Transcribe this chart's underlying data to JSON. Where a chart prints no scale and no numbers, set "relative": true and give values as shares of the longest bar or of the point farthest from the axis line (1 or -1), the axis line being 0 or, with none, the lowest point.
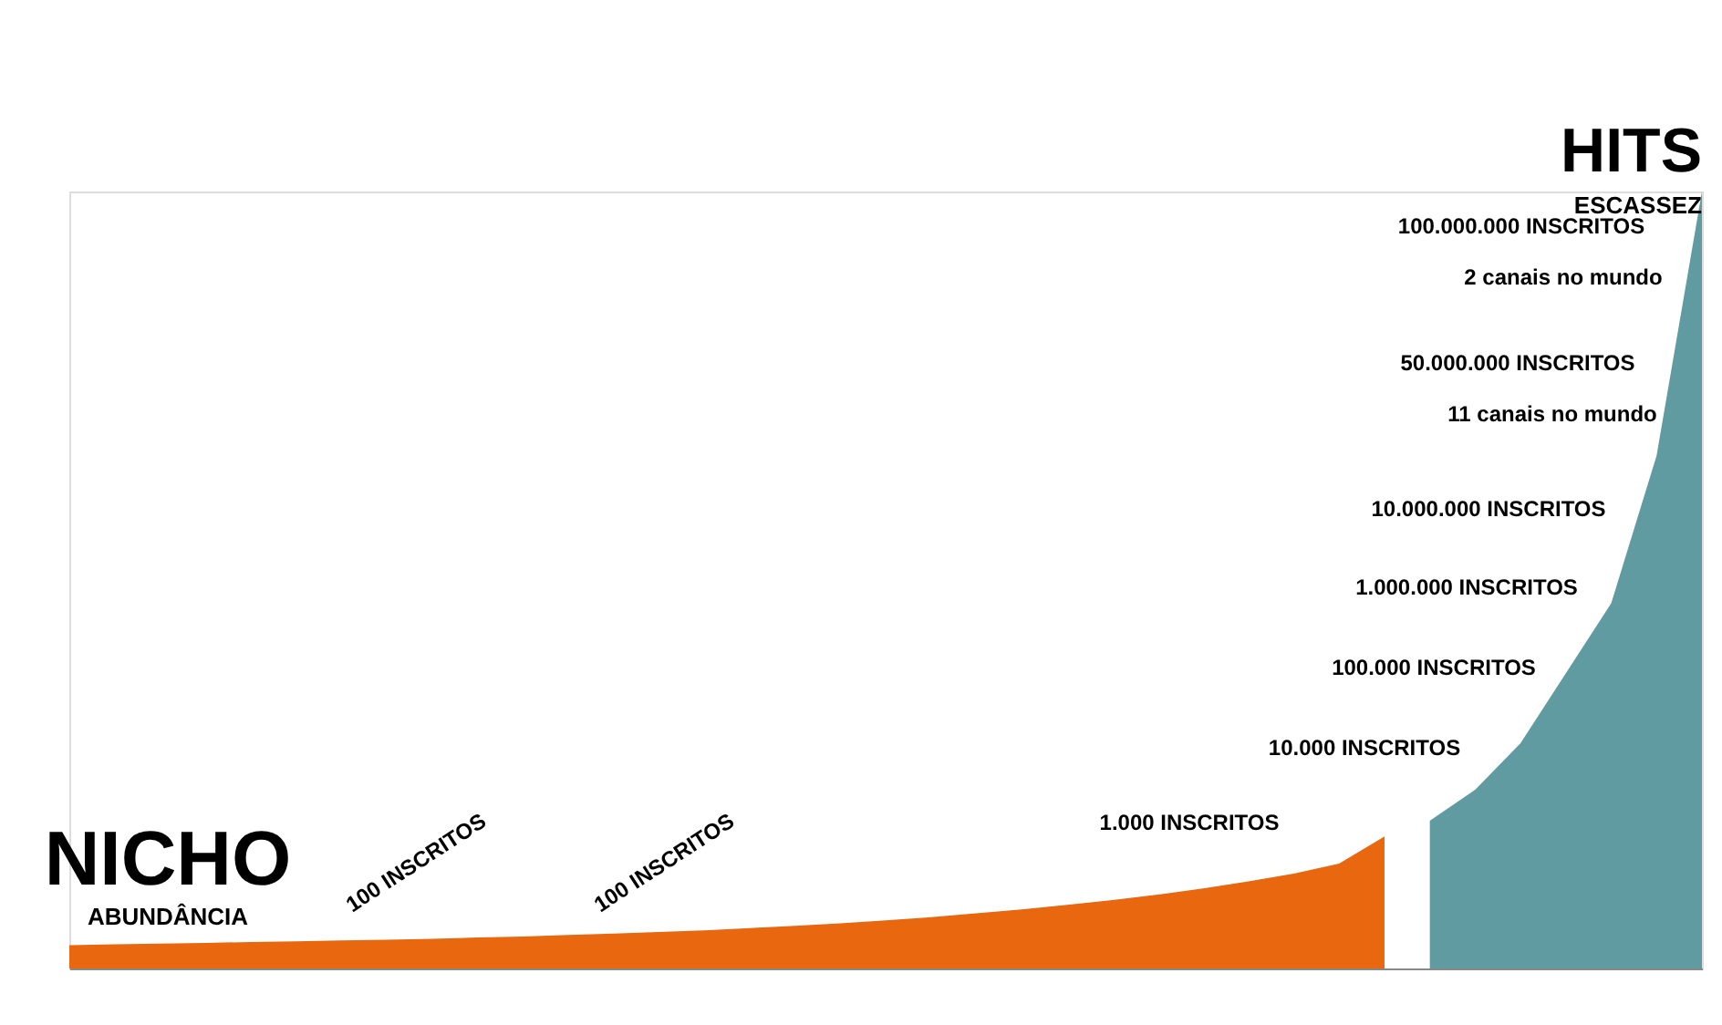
{
  "chart_data": {
    "type": "area",
    "relative": true,
    "categories": [
      null,
      null,
      null,
      null,
      null,
      null,
      null,
      null,
      null,
      null,
      null,
      null,
      null,
      null,
      null,
      null,
      null,
      null,
      null,
      null,
      null,
      null,
      null,
      null,
      null,
      null,
      null,
      null,
      null,
      null,
      null,
      null,
      null,
      null,
      null,
      null,
      null
    ],
    "series": [
      {
        "color": "#e8670f",
        "values": [
          0.03,
          0.031,
          0.032,
          0.033,
          0.034,
          0.035,
          0.036,
          0.037,
          0.038,
          0.04,
          0.041,
          0.043,
          0.045,
          0.047,
          0.049,
          0.052,
          0.055,
          0.058,
          0.062,
          0.066,
          0.071,
          0.076,
          0.082,
          0.088,
          0.095,
          0.103,
          0.112,
          0.122,
          0.135,
          0.17,
          null,
          null,
          null,
          null,
          null,
          null,
          null
        ]
      },
      {
        "color": "#5f9ba1",
        "values": [
          null,
          null,
          null,
          null,
          null,
          null,
          null,
          null,
          null,
          null,
          null,
          null,
          null,
          null,
          null,
          null,
          null,
          null,
          null,
          null,
          null,
          null,
          null,
          null,
          null,
          null,
          null,
          null,
          null,
          null,
          0.19,
          0.23,
          0.29,
          0.38,
          0.47,
          0.66,
          1.0
        ]
      }
    ],
    "annotations": [
      "NICHO",
      "ABUNDÂNCIA",
      "HITS",
      "ESCASSEZ",
      "100 INSCRITOS",
      "100 INSCRITOS",
      "1.000 INSCRITOS",
      "10.000 INSCRITOS",
      "100.000 INSCRITOS",
      "1.000.000 INSCRITOS",
      "10.000.000 INSCRITOS",
      "50.000.000 INSCRITOS",
      "11 canais no mundo",
      "100.000.000 INSCRITOS",
      "2 canais no mundo"
    ]
  }
}
